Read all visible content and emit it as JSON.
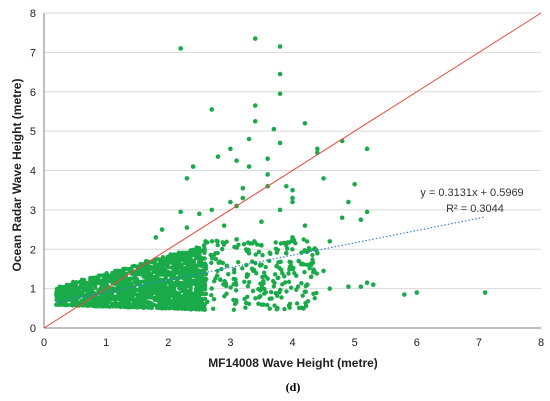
{
  "chart_data": {
    "type": "scatter",
    "xlabel": "MF14008 Wave Height (metre)",
    "ylabel": "Ocean Radar Wave Height (metre)",
    "xlim": [
      0,
      8
    ],
    "ylim": [
      0,
      8
    ],
    "xticks": [
      "0",
      "1",
      "2",
      "3",
      "4",
      "5",
      "6",
      "7",
      "8"
    ],
    "yticks": [
      "0",
      "1",
      "2",
      "3",
      "4",
      "5",
      "6",
      "7",
      "8"
    ],
    "grid": "horizontal",
    "caption": "(d)",
    "point_color": "#1aaa4a",
    "one_to_one_line_color": "#e8483a",
    "trendline": {
      "slope": 0.3131,
      "intercept": 0.5969,
      "x_range": [
        0.2,
        7.1
      ],
      "color": "#3a7fd0",
      "equation": "y = 0.3131x + 0.5969",
      "r2": "R² = 0.3044"
    },
    "series": [
      {
        "points": [
          [
            2.2,
            7.1
          ],
          [
            3.4,
            7.35
          ],
          [
            3.8,
            7.15
          ],
          [
            3.8,
            6.45
          ],
          [
            3.8,
            5.95
          ],
          [
            2.7,
            5.55
          ],
          [
            3.4,
            5.65
          ],
          [
            3.4,
            5.25
          ],
          [
            3.7,
            5.05
          ],
          [
            4.2,
            5.2
          ],
          [
            3.3,
            4.8
          ],
          [
            3.8,
            4.7
          ],
          [
            3.0,
            4.55
          ],
          [
            4.4,
            4.55
          ],
          [
            4.4,
            4.45
          ],
          [
            2.8,
            4.35
          ],
          [
            3.1,
            4.25
          ],
          [
            4.8,
            4.75
          ],
          [
            5.2,
            4.55
          ],
          [
            3.6,
            4.3
          ],
          [
            2.4,
            4.1
          ],
          [
            3.3,
            4.1
          ],
          [
            3.6,
            3.9
          ],
          [
            2.3,
            3.8
          ],
          [
            4.5,
            3.8
          ],
          [
            3.2,
            3.55
          ],
          [
            3.6,
            3.6
          ],
          [
            3.9,
            3.6
          ],
          [
            4.0,
            3.5
          ],
          [
            5.0,
            3.65
          ],
          [
            3.0,
            3.2
          ],
          [
            3.2,
            3.3
          ],
          [
            4.0,
            3.2
          ],
          [
            4.0,
            3.3
          ],
          [
            4.9,
            3.2
          ],
          [
            2.7,
            3.0
          ],
          [
            3.1,
            3.1
          ],
          [
            3.8,
            3.0
          ],
          [
            4.8,
            2.8
          ],
          [
            5.1,
            2.75
          ],
          [
            5.2,
            2.95
          ],
          [
            2.2,
            2.95
          ],
          [
            2.5,
            2.9
          ],
          [
            3.5,
            2.7
          ],
          [
            4.2,
            2.6
          ],
          [
            1.9,
            2.5
          ],
          [
            2.3,
            2.55
          ],
          [
            2.9,
            2.6
          ],
          [
            1.8,
            2.3
          ],
          [
            2.6,
            2.2
          ],
          [
            4.0,
            2.3
          ],
          [
            4.6,
            2.2
          ],
          [
            5.2,
            1.15
          ],
          [
            5.3,
            1.1
          ],
          [
            5.1,
            1.05
          ],
          [
            4.6,
            1.0
          ],
          [
            4.9,
            1.05
          ],
          [
            5.8,
            0.85
          ],
          [
            6.0,
            0.9
          ],
          [
            7.1,
            0.9
          ],
          [
            4.3,
            1.3
          ],
          [
            4.5,
            1.45
          ],
          [
            4.3,
            1.6
          ],
          [
            3.9,
            1.9
          ],
          [
            4.1,
            1.7
          ],
          [
            4.4,
            1.9
          ],
          [
            3.5,
            2.1
          ],
          [
            3.3,
            1.9
          ],
          [
            3.9,
            2.1
          ],
          [
            3.1,
            2.25
          ]
        ]
      }
    ]
  }
}
